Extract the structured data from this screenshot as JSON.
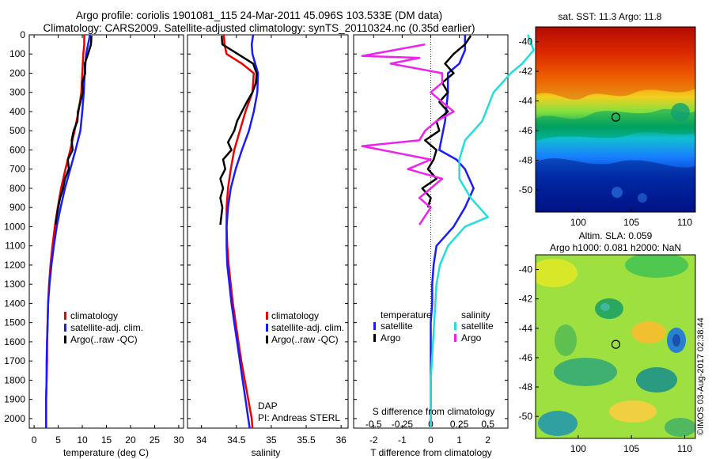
{
  "title": {
    "line1": "Argo profile: coriolis 1901081_115 24-Mar-2011 45.096S 103.533E (DM data)",
    "line2": "Climatology: CARS2009. Satellite-adjusted climatology: synTS_20110324.nc (0.35d earlier)"
  },
  "stamp": "©IMOS 03-Aug-2017 02:38:44",
  "colors": {
    "climatology": "#ee0000",
    "satellite": "#1a1aff",
    "argo": "#000000",
    "satellite_salinity": "#22dddd",
    "argo_salinity": "#ee22ee"
  },
  "chart_data": [
    {
      "type": "line",
      "id": "temperature",
      "xlabel": "temperature (deg C)",
      "ylabel": "",
      "xlim": [
        -1,
        31
      ],
      "ylim": [
        2050,
        0
      ],
      "xticks": [
        0,
        5,
        10,
        15,
        20,
        25,
        30
      ],
      "yticks": [
        0,
        100,
        200,
        300,
        400,
        500,
        600,
        700,
        800,
        900,
        1000,
        1100,
        1200,
        1300,
        1400,
        1500,
        1600,
        1700,
        1800,
        1900,
        2000
      ],
      "legend": [
        "climatology",
        "satellite-adj. clim.",
        "Argo(..raw -QC)"
      ],
      "series": [
        {
          "name": "climatology",
          "color": "#ee0000",
          "x": [
            10.4,
            10.4,
            10.2,
            10.0,
            9.8,
            9.2,
            8.4,
            7.5,
            6.5,
            5.6,
            4.9,
            4.3,
            3.8,
            3.4,
            3.1,
            2.9,
            2.8,
            2.7,
            2.7,
            2.6,
            2.5,
            2.5
          ],
          "y": [
            0,
            50,
            100,
            200,
            300,
            400,
            500,
            600,
            700,
            800,
            900,
            1000,
            1100,
            1200,
            1300,
            1400,
            1500,
            1600,
            1700,
            1800,
            1900,
            2050
          ]
        },
        {
          "name": "satellite-adj. clim.",
          "color": "#1a1aff",
          "x": [
            11.6,
            11.2,
            10.8,
            10.5,
            10.3,
            10.0,
            9.6,
            8.6,
            7.5,
            6.4,
            5.5,
            4.7,
            4.1,
            3.6,
            3.2,
            2.9,
            2.8,
            2.7,
            2.6,
            2.6,
            2.5,
            2.5
          ],
          "y": [
            0,
            50,
            100,
            200,
            300,
            400,
            500,
            600,
            700,
            800,
            900,
            1000,
            1100,
            1200,
            1300,
            1400,
            1500,
            1600,
            1700,
            1800,
            1900,
            2050
          ]
        },
        {
          "name": "Argo(..raw -QC)",
          "color": "#000000",
          "x": [
            11.9,
            11.8,
            11.2,
            10.5,
            10.6,
            10.0,
            10.1,
            9.6,
            9.1,
            9.0,
            8.2,
            7.8,
            8.0,
            7.0,
            7.2,
            6.4,
            6.0,
            5.4,
            5.0,
            4.4
          ],
          "y": [
            5,
            50,
            100,
            150,
            200,
            250,
            300,
            350,
            400,
            450,
            500,
            550,
            600,
            650,
            700,
            750,
            800,
            850,
            900,
            990
          ]
        }
      ]
    },
    {
      "type": "line",
      "id": "salinity",
      "xlabel": "salinity",
      "ylabel": "",
      "xlim": [
        33.8,
        36.1
      ],
      "ylim": [
        2050,
        0
      ],
      "xticks": [
        34,
        34.5,
        35,
        35.5,
        36
      ],
      "legend": [
        "climatology",
        "satellite-adj. clim.",
        "Argo(..raw -QC)"
      ],
      "annotation": [
        "DAP",
        "PI: Andreas STERL"
      ],
      "series": [
        {
          "name": "climatology",
          "color": "#ee0000",
          "x": [
            34.32,
            34.33,
            34.36,
            34.58,
            34.75,
            34.73,
            34.63,
            34.55,
            34.47,
            34.42,
            34.38,
            34.36,
            34.36,
            34.37,
            34.39,
            34.42,
            34.45,
            34.49,
            34.53,
            34.57,
            34.62,
            34.67,
            34.72,
            34.73
          ],
          "y": [
            0,
            50,
            100,
            150,
            200,
            300,
            400,
            500,
            600,
            700,
            800,
            900,
            1000,
            1100,
            1200,
            1300,
            1400,
            1500,
            1600,
            1700,
            1800,
            1900,
            2000,
            2050
          ]
        },
        {
          "name": "satellite-adj. clim.",
          "color": "#1a1aff",
          "x": [
            34.74,
            34.72,
            34.73,
            34.77,
            34.81,
            34.8,
            34.75,
            34.68,
            34.58,
            34.49,
            34.42,
            34.38,
            34.36,
            34.36,
            34.37,
            34.4,
            34.43,
            34.47,
            34.51,
            34.55,
            34.59,
            34.63,
            34.67,
            34.69
          ],
          "y": [
            0,
            50,
            100,
            150,
            200,
            300,
            400,
            500,
            600,
            700,
            800,
            900,
            1000,
            1100,
            1200,
            1300,
            1400,
            1500,
            1600,
            1700,
            1800,
            1900,
            2000,
            2050
          ]
        },
        {
          "name": "Argo(..raw -QC)",
          "color": "#000000",
          "x": [
            34.29,
            34.3,
            34.52,
            34.74,
            34.79,
            34.78,
            34.73,
            34.65,
            34.58,
            34.51,
            34.47,
            34.38,
            34.43,
            34.31,
            34.34,
            34.27,
            34.31,
            34.27,
            34.3,
            34.27
          ],
          "y": [
            5,
            50,
            100,
            150,
            200,
            250,
            300,
            350,
            400,
            450,
            500,
            560,
            600,
            650,
            700,
            750,
            800,
            850,
            900,
            990
          ]
        }
      ]
    },
    {
      "type": "line",
      "id": "difference",
      "xlabel": "T difference from climatology",
      "x2label": "S difference from climatology",
      "xlim": [
        -2.7,
        2.7
      ],
      "ylim": [
        2050,
        0
      ],
      "xticks": [
        -2,
        -1,
        0,
        1,
        2
      ],
      "x2ticks": [
        -0.5,
        -0.25,
        0,
        0.25,
        0.5
      ],
      "x2ticklabels": [
        "-0.5",
        "-0.25",
        "0",
        "0.25",
        "0.5"
      ],
      "legend_temperature_title": "temperature",
      "legend_salinity_title": "salinity",
      "legend": [
        "satellite",
        "Argo",
        "satellite",
        "Argo"
      ],
      "series": [
        {
          "name": "satellite",
          "group": "temperature",
          "color": "#1a1aff",
          "x": [
            1.2,
            1.2,
            1.0,
            0.6,
            0.6,
            0.5,
            0.3,
            0.9,
            1.2,
            1.5,
            1.2,
            0.8,
            0.2,
            0.1,
            0.05,
            0.05,
            0.0,
            0.0,
            0.0,
            0.0,
            0.0
          ],
          "y": [
            0,
            80,
            150,
            200,
            300,
            450,
            600,
            650,
            700,
            800,
            900,
            1000,
            1100,
            1200,
            1300,
            1400,
            1500,
            1600,
            1700,
            1800,
            2050
          ]
        },
        {
          "name": "Argo",
          "group": "temperature",
          "color": "#000000",
          "x": [
            1.4,
            1.2,
            0.8,
            0.5,
            0.8,
            0.4,
            0.6,
            0.3,
            0.6,
            0.2,
            0.3,
            -0.2,
            0.2,
            0.1,
            -0.1,
            0.2,
            -0.3,
            0.0,
            -0.1
          ],
          "y": [
            5,
            50,
            100,
            150,
            200,
            250,
            300,
            350,
            400,
            450,
            500,
            550,
            600,
            650,
            700,
            750,
            800,
            850,
            900
          ]
        },
        {
          "name": "satellite",
          "group": "salinity",
          "color": "#22dddd",
          "x": [
            0.85,
            0.9,
            0.8,
            0.7,
            0.55,
            0.45,
            0.3,
            0.25,
            0.25,
            0.35,
            0.5,
            0.3,
            0.15,
            0.08,
            0.05,
            0.04,
            0.03,
            0.02,
            0.01,
            0.0,
            0.0
          ],
          "y": [
            0,
            80,
            150,
            200,
            300,
            450,
            550,
            650,
            750,
            850,
            950,
            1000,
            1100,
            1200,
            1300,
            1400,
            1500,
            1600,
            1700,
            1800,
            2050
          ]
        },
        {
          "name": "Argo",
          "group": "salinity",
          "color": "#ee22ee",
          "x": [
            -0.05,
            -0.6,
            -0.1,
            -0.35,
            0.1,
            0.1,
            0.0,
            0.1,
            0.2,
            0.05,
            -0.05,
            -0.1,
            -0.6,
            0.0,
            -0.2,
            0.1,
            0.0,
            -0.1,
            0.0,
            -0.1
          ],
          "y": [
            50,
            110,
            120,
            150,
            200,
            250,
            300,
            350,
            400,
            450,
            500,
            550,
            580,
            650,
            700,
            750,
            800,
            850,
            900,
            990
          ]
        }
      ]
    },
    {
      "type": "heatmap",
      "id": "sst-map",
      "title": "sat. SST: 11.3 Argo: 11.8",
      "xlim": [
        96,
        111
      ],
      "ylim": [
        -51.5,
        -39
      ],
      "xticks": [
        100,
        105,
        110
      ],
      "yticks": [
        -40,
        -42,
        -44,
        -46,
        -48,
        -50
      ],
      "marker": {
        "x": 103.533,
        "y": -45.096
      }
    },
    {
      "type": "heatmap",
      "id": "sla-map",
      "title_line1": "Altim. SLA: 0.059",
      "title_line2": "Argo h1000: 0.081 h2000: NaN",
      "xlim": [
        96,
        111
      ],
      "ylim": [
        -51.5,
        -39
      ],
      "xticks": [
        100,
        105,
        110
      ],
      "yticks": [
        -40,
        -42,
        -44,
        -46,
        -48,
        -50
      ],
      "marker": {
        "x": 103.533,
        "y": -45.096
      }
    }
  ]
}
